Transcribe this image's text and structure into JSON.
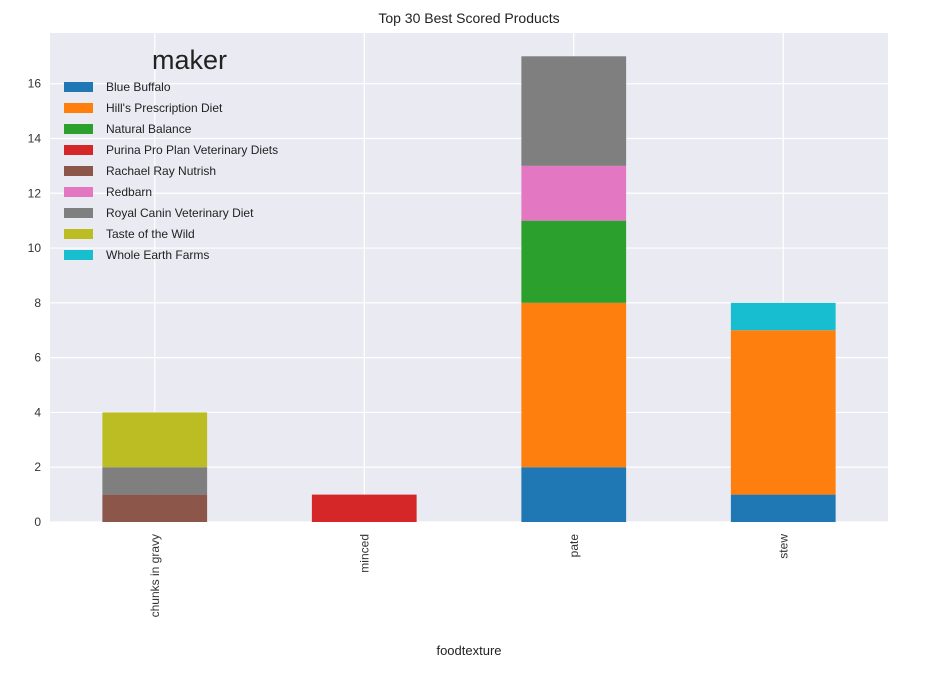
{
  "chart_data": {
    "type": "bar",
    "stacked": true,
    "title": "Top 30 Best Scored Products",
    "xlabel": "foodtexture",
    "ylabel": "",
    "categories": [
      "chunks in gravy",
      "minced",
      "pate",
      "stew"
    ],
    "ylim": [
      0,
      17.85
    ],
    "yticks": [
      0,
      2,
      4,
      6,
      8,
      10,
      12,
      14,
      16
    ],
    "grid": true,
    "legend_title": "maker",
    "legend_position": "top-left",
    "series": [
      {
        "name": "Blue Buffalo",
        "color": "#1f77b4",
        "values": [
          0,
          0,
          2,
          1
        ]
      },
      {
        "name": "Hill's Prescription Diet",
        "color": "#ff7f0e",
        "values": [
          0,
          0,
          6,
          6
        ]
      },
      {
        "name": "Natural Balance",
        "color": "#2ca02c",
        "values": [
          0,
          0,
          3,
          0
        ]
      },
      {
        "name": "Purina Pro Plan Veterinary Diets",
        "color": "#d62728",
        "values": [
          0,
          1,
          0,
          0
        ]
      },
      {
        "name": "Rachael Ray Nutrish",
        "color": "#8c564b",
        "values": [
          1,
          0,
          0,
          0
        ]
      },
      {
        "name": "Redbarn",
        "color": "#e377c2",
        "values": [
          0,
          0,
          2,
          0
        ]
      },
      {
        "name": "Royal Canin Veterinary Diet",
        "color": "#7f7f7f",
        "values": [
          1,
          0,
          4,
          0
        ]
      },
      {
        "name": "Taste of the Wild",
        "color": "#bcbd22",
        "values": [
          2,
          0,
          0,
          0
        ]
      },
      {
        "name": "Whole Earth Farms",
        "color": "#17becf",
        "values": [
          0,
          0,
          0,
          1
        ]
      }
    ]
  }
}
